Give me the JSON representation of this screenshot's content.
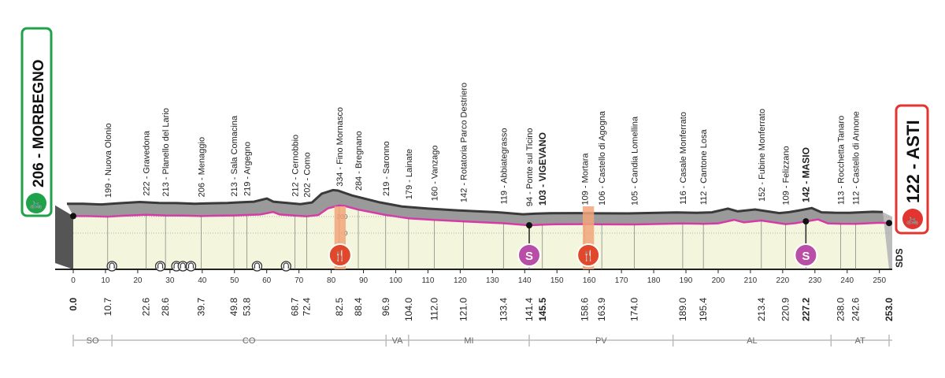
{
  "start": {
    "label": "206 - MORBEGNO",
    "color": "#1fa34a"
  },
  "finish": {
    "label": "122 - ASTI",
    "color": "#e3342f"
  },
  "chart_data": {
    "type": "area",
    "x_range": [
      0,
      253
    ],
    "x_ticks": [
      0,
      10,
      20,
      30,
      40,
      50,
      60,
      70,
      80,
      90,
      100,
      110,
      120,
      130,
      140,
      150,
      160,
      170,
      180,
      190,
      200,
      210,
      220,
      230,
      240,
      250
    ],
    "altitude_labels": [
      "200",
      "0"
    ],
    "locations": [
      {
        "km": 0.0,
        "km_label": "0.0",
        "alt": 206,
        "name": "206 - MORBEGNO",
        "bold": true,
        "endpoint": true
      },
      {
        "km": 10.7,
        "km_label": "10.7",
        "alt": 199,
        "name": "199 - Nuova Olonio"
      },
      {
        "km": 22.6,
        "km_label": "22.6",
        "alt": 222,
        "name": "222 - Gravedona"
      },
      {
        "km": 28.6,
        "km_label": "28.6",
        "alt": 213,
        "name": "213 - Planello del Lario"
      },
      {
        "km": 39.7,
        "km_label": "39.7",
        "alt": 206,
        "name": "206 - Menaggio"
      },
      {
        "km": 49.8,
        "km_label": "49.8",
        "alt": 213,
        "name": "213 - Sala Comacina"
      },
      {
        "km": 53.8,
        "km_label": "53.8",
        "alt": 219,
        "name": "219 - Argegno"
      },
      {
        "km": 68.7,
        "km_label": "68.7",
        "alt": 212,
        "name": "212 - Cernobbio"
      },
      {
        "km": 72.4,
        "km_label": "72.4",
        "alt": 202,
        "name": "202 - Como"
      },
      {
        "km": 82.5,
        "km_label": "82.5",
        "alt": 334,
        "name": "334 - Fino Mornasco"
      },
      {
        "km": 88.4,
        "km_label": "88.4",
        "alt": 284,
        "name": "284 - Bregnano"
      },
      {
        "km": 96.9,
        "km_label": "96.9",
        "alt": 219,
        "name": "219 - Saronno"
      },
      {
        "km": 104.0,
        "km_label": "104.0",
        "alt": 179,
        "name": "179 - Lainate"
      },
      {
        "km": 112.0,
        "km_label": "112.0",
        "alt": 160,
        "name": "160 - Vanzago"
      },
      {
        "km": 121.0,
        "km_label": "121.0",
        "alt": 142,
        "name": "142 - Rotatoria Parco Destriero"
      },
      {
        "km": 133.4,
        "km_label": "133.4",
        "alt": 119,
        "name": "119 - Abbiategrasso"
      },
      {
        "km": 141.4,
        "km_label": "141.4",
        "alt": 94,
        "name": "94 - Ponte sul Ticino"
      },
      {
        "km": 145.5,
        "km_label": "145.5",
        "alt": 103,
        "name": "103 - VIGEVANO",
        "bold": true
      },
      {
        "km": 158.6,
        "km_label": "158.6",
        "alt": 109,
        "name": "109 - Mortara"
      },
      {
        "km": 163.9,
        "km_label": "163.9",
        "alt": 106,
        "name": "106 - Castello di Agogna"
      },
      {
        "km": 174.0,
        "km_label": "174.0",
        "alt": 105,
        "name": "105 - Candia Lomellina"
      },
      {
        "km": 189.0,
        "km_label": "189.0",
        "alt": 116,
        "name": "116 - Casale Monferrato"
      },
      {
        "km": 195.4,
        "km_label": "195.4",
        "alt": 112,
        "name": "112 - Cantone Losa"
      },
      {
        "km": 213.4,
        "km_label": "213.4",
        "alt": 152,
        "name": "152 - Fubine Monferrato"
      },
      {
        "km": 220.9,
        "km_label": "220.9",
        "alt": 109,
        "name": "109 - Felizzano"
      },
      {
        "km": 227.2,
        "km_label": "227.2",
        "alt": 142,
        "name": "142 - MASIO",
        "bold": true
      },
      {
        "km": 238.0,
        "km_label": "238.0",
        "alt": 113,
        "name": "113 - Rocchetta Tanaro"
      },
      {
        "km": 242.6,
        "km_label": "242.6",
        "alt": 112,
        "name": "112 - Castello di Annone"
      },
      {
        "km": 253.0,
        "km_label": "253.0",
        "alt": 122,
        "name": "122 - ASTI",
        "bold": true,
        "endpoint": true
      }
    ],
    "extra_profile_points": [
      {
        "km": 5,
        "alt": 205
      },
      {
        "km": 16,
        "alt": 210
      },
      {
        "km": 34,
        "alt": 212
      },
      {
        "km": 45,
        "alt": 210
      },
      {
        "km": 58,
        "alt": 225
      },
      {
        "km": 62,
        "alt": 255
      },
      {
        "km": 64,
        "alt": 225
      },
      {
        "km": 76,
        "alt": 218
      },
      {
        "km": 79,
        "alt": 300
      },
      {
        "km": 84,
        "alt": 330
      },
      {
        "km": 150,
        "alt": 108
      },
      {
        "km": 200,
        "alt": 118
      },
      {
        "km": 205,
        "alt": 160
      },
      {
        "km": 208,
        "alt": 130
      },
      {
        "km": 224,
        "alt": 120
      },
      {
        "km": 231,
        "alt": 165
      },
      {
        "km": 234,
        "alt": 118
      },
      {
        "km": 250,
        "alt": 125
      }
    ],
    "tunnels_km": [
      12,
      27,
      32,
      34,
      36.5,
      57,
      66
    ],
    "feed_zones": [
      {
        "km_from": 81,
        "km_to": 84.5,
        "icon": "feed-zone-icon"
      },
      {
        "km_from": 158,
        "km_to": 161.5,
        "icon": "feed-zone-icon"
      }
    ],
    "sprints": [
      {
        "km": 141.4,
        "icon": "sprint-icon"
      },
      {
        "km": 227.2,
        "icon": "sprint-icon"
      }
    ],
    "provinces": [
      {
        "code": "SO",
        "km_from": 0,
        "km_to": 12
      },
      {
        "code": "CO",
        "km_from": 12,
        "km_to": 97
      },
      {
        "code": "VA",
        "km_from": 97,
        "km_to": 104
      },
      {
        "code": "MI",
        "km_from": 104,
        "km_to": 141.4
      },
      {
        "code": "PV",
        "km_from": 141.4,
        "km_to": 186
      },
      {
        "code": "AL",
        "km_from": 186,
        "km_to": 235
      },
      {
        "code": "AT",
        "km_from": 235,
        "km_to": 253
      }
    ]
  },
  "sds_logo": "SDS",
  "colors": {
    "profile_grey": "#9a9a9a",
    "profile_dark": "#3a3a3a",
    "course_line": "#d63aa8",
    "ground_fill": "#f3f6dc",
    "feed_zone": "#f2a57a",
    "sprint": "#b84ea6",
    "food": "#e0472b"
  }
}
